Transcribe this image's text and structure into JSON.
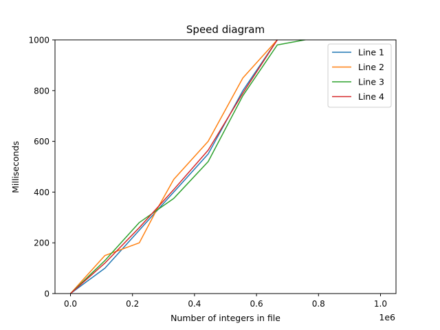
{
  "chart_data": {
    "type": "line",
    "title": "Speed diagram",
    "xlabel": "Number of integers in file",
    "ylabel": "Milliseconds",
    "x_offset_label": "1e6",
    "xlim": [
      -0.05,
      1.05
    ],
    "ylim": [
      0,
      1000
    ],
    "x_unit_scale": 1000000,
    "xticks": [
      0,
      0.2,
      0.4,
      0.6,
      0.8,
      1.0
    ],
    "xtick_labels": [
      "0.0",
      "0.2",
      "0.4",
      "0.6",
      "0.8",
      "1.0"
    ],
    "yticks": [
      0,
      200,
      400,
      600,
      800,
      1000
    ],
    "ytick_labels": [
      "0",
      "200",
      "400",
      "600",
      "800",
      "1000"
    ],
    "grid": false,
    "legend_position": "top-right",
    "series": [
      {
        "name": "Line 1",
        "color": "#1f77b4",
        "x": [
          0,
          0.111,
          0.222,
          0.333,
          0.444,
          0.556,
          0.667
        ],
        "y": [
          0,
          100,
          250,
          400,
          550,
          800,
          1000
        ]
      },
      {
        "name": "Line 2",
        "color": "#ff7f0e",
        "x": [
          0,
          0.111,
          0.222,
          0.278,
          0.333,
          0.444,
          0.556,
          0.667
        ],
        "y": [
          0,
          150,
          200,
          330,
          450,
          600,
          850,
          1000
        ]
      },
      {
        "name": "Line 3",
        "color": "#2ca02c",
        "x": [
          0,
          0.111,
          0.222,
          0.333,
          0.444,
          0.556,
          0.667,
          0.778
        ],
        "y": [
          0,
          130,
          280,
          375,
          520,
          780,
          980,
          1005
        ]
      },
      {
        "name": "Line 4",
        "color": "#d62728",
        "x": [
          0,
          0.111,
          0.222,
          0.333,
          0.444,
          0.556,
          0.667
        ],
        "y": [
          0,
          120,
          260,
          410,
          565,
          790,
          1000
        ]
      }
    ]
  }
}
